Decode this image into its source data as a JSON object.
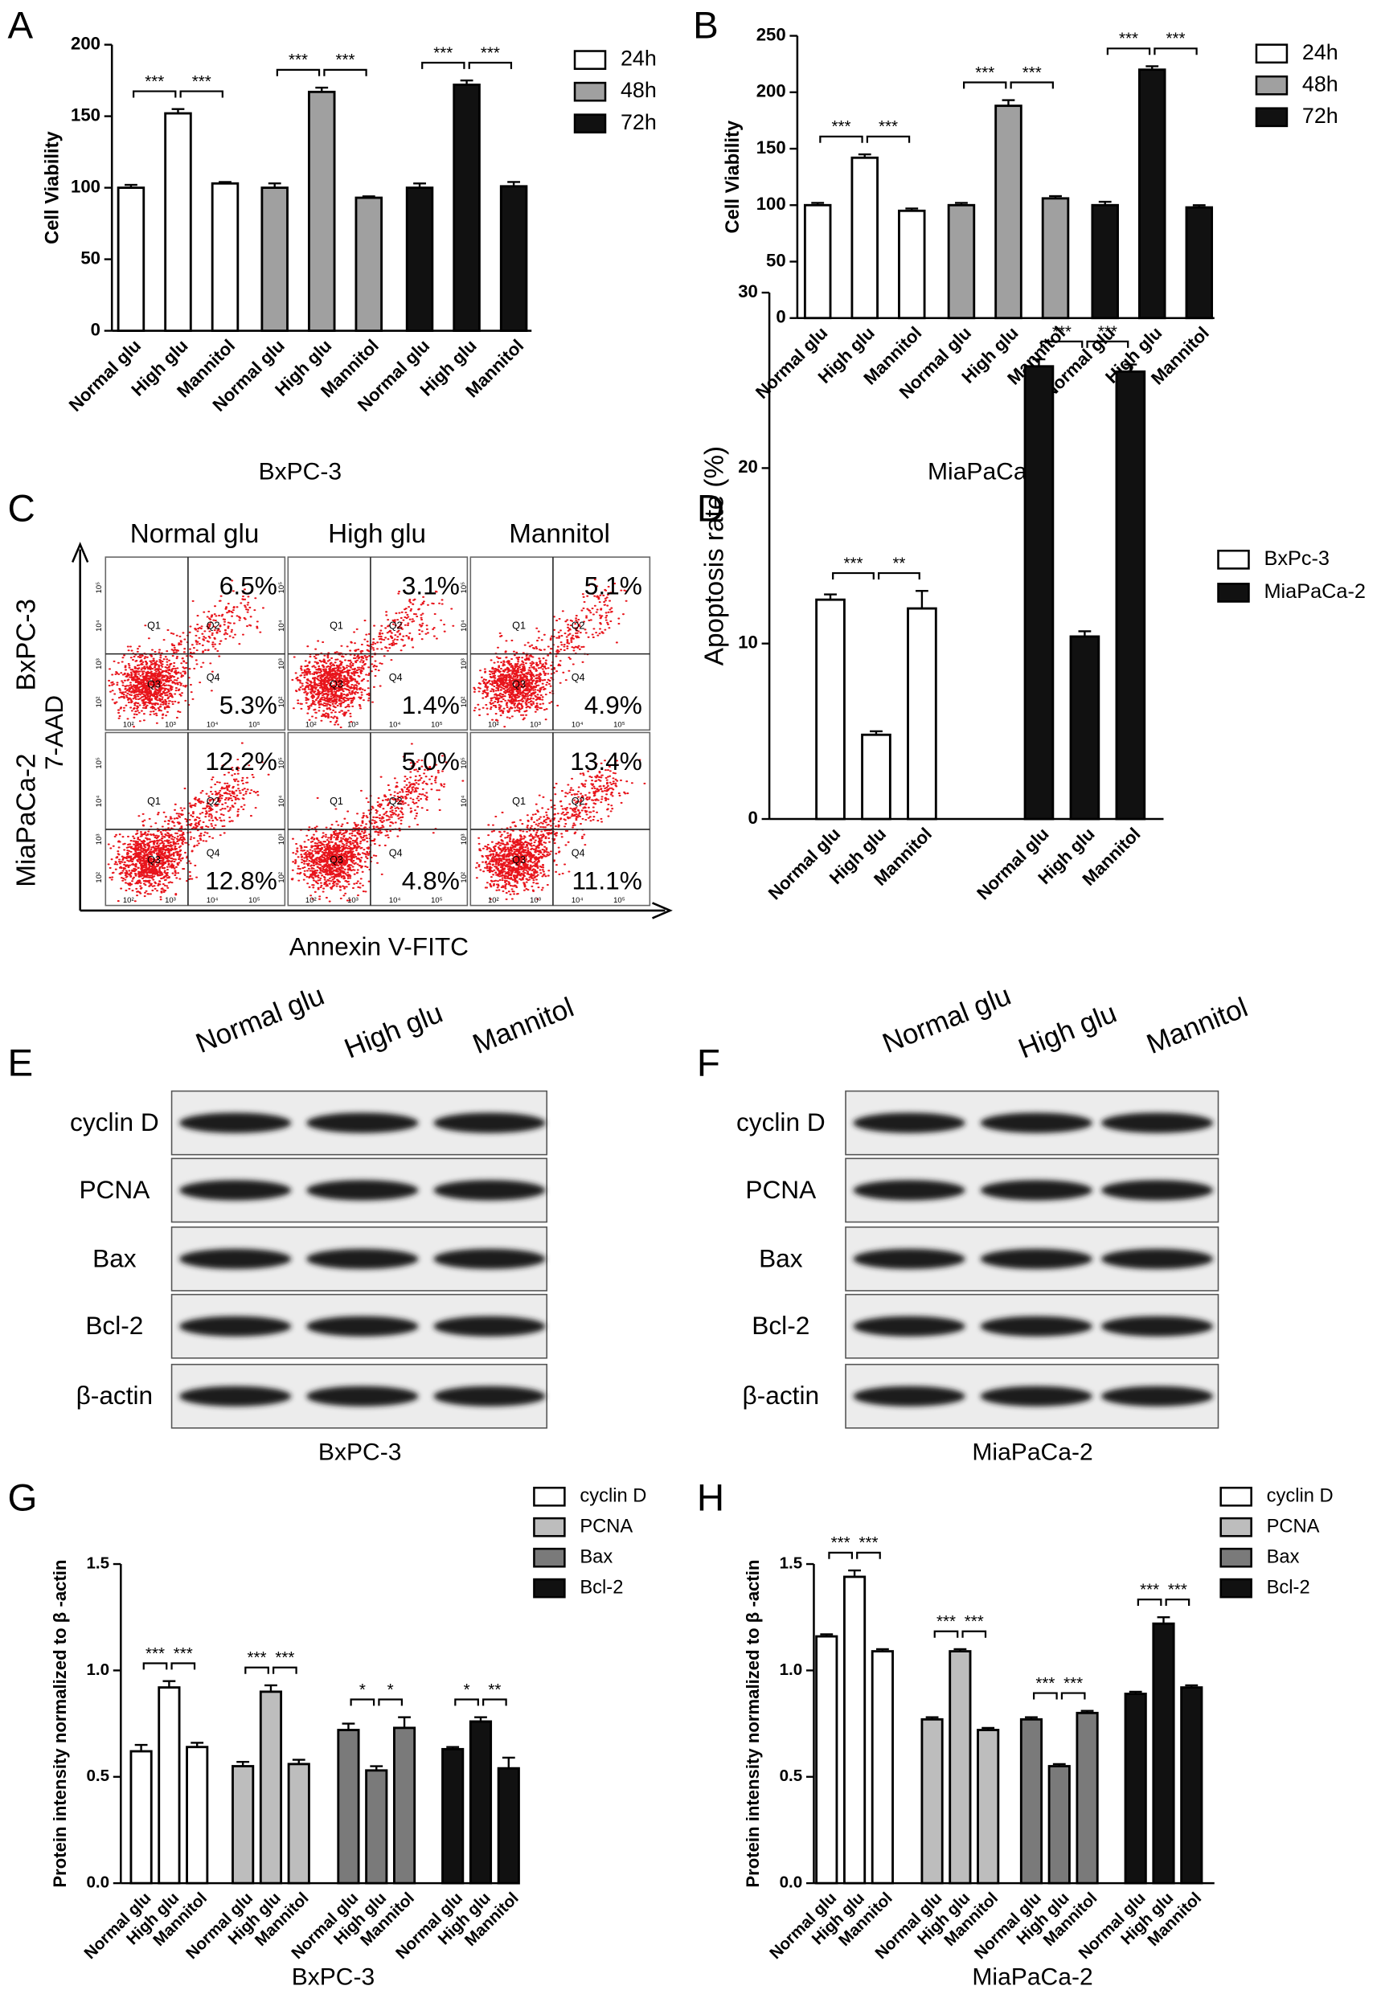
{
  "chart_data": [
    {
      "panel": "A",
      "type": "bar",
      "ylabel": "Cell Viability",
      "xlabel": "BxPC-3",
      "categories": [
        "Normal glu",
        "High glu",
        "Mannitol"
      ],
      "ylim": [
        0,
        200
      ],
      "yticks": [
        0,
        50,
        100,
        150,
        200
      ],
      "series": [
        {
          "name": "24h",
          "color": "#ffffff",
          "values": [
            100,
            152,
            103
          ],
          "errors": [
            2,
            3,
            1
          ],
          "significance": [
            "***",
            "***"
          ]
        },
        {
          "name": "48h",
          "color": "#a0a0a0",
          "values": [
            100,
            167,
            93
          ],
          "errors": [
            3,
            3,
            1
          ],
          "significance": [
            "***",
            "***"
          ]
        },
        {
          "name": "72h",
          "color": "#111111",
          "values": [
            100,
            172,
            101
          ],
          "errors": [
            3,
            3,
            3
          ],
          "significance": [
            "***",
            "***"
          ]
        }
      ]
    },
    {
      "panel": "B",
      "type": "bar",
      "ylabel": "Cell Viability",
      "xlabel": "MiaPaCa-2",
      "categories": [
        "Normal glu",
        "High glu",
        "Mannitol"
      ],
      "ylim": [
        0,
        250
      ],
      "yticks": [
        0,
        50,
        100,
        150,
        200,
        250
      ],
      "series": [
        {
          "name": "24h",
          "color": "#ffffff",
          "values": [
            100,
            142,
            95
          ],
          "errors": [
            2,
            3,
            2
          ],
          "significance": [
            "***",
            "***"
          ]
        },
        {
          "name": "48h",
          "color": "#a0a0a0",
          "values": [
            100,
            188,
            106
          ],
          "errors": [
            2,
            5,
            2
          ],
          "significance": [
            "***",
            "***"
          ]
        },
        {
          "name": "72h",
          "color": "#111111",
          "values": [
            100,
            220,
            98
          ],
          "errors": [
            3,
            3,
            2
          ],
          "significance": [
            "***",
            "***"
          ]
        }
      ]
    },
    {
      "panel": "D",
      "type": "bar",
      "ylabel": "Apoptosis rate (%)",
      "categories": [
        "Normal glu",
        "High glu",
        "Mannitol"
      ],
      "ylim": [
        0,
        30
      ],
      "yticks": [
        0,
        10,
        20,
        30
      ],
      "series": [
        {
          "name": "BxPc-3",
          "color": "#ffffff",
          "values": [
            12.5,
            4.8,
            12
          ],
          "errors": [
            0.3,
            0.2,
            1
          ],
          "significance": [
            "***",
            "**"
          ]
        },
        {
          "name": "MiaPaCa-2",
          "color": "#111111",
          "values": [
            25.8,
            10.4,
            25.5
          ],
          "errors": [
            0.4,
            0.3,
            0.4
          ],
          "significance": [
            "***",
            "***"
          ]
        }
      ]
    },
    {
      "panel": "G",
      "type": "bar",
      "ylabel": "Protein intensity normalized to β -actin",
      "xlabel": "BxPC-3",
      "categories": [
        "Normal glu",
        "High glu",
        "Mannitol"
      ],
      "ylim": [
        0,
        1.5
      ],
      "yticks": [
        {
          "value": 0,
          "label": "0.0"
        },
        0.5,
        {
          "value": 1,
          "label": "1.0"
        },
        1.5
      ],
      "series": [
        {
          "name": "cyclin D",
          "color": "#ffffff",
          "values": [
            0.62,
            0.92,
            0.64
          ],
          "errors": [
            0.03,
            0.03,
            0.02
          ],
          "significance": [
            "***",
            "***"
          ]
        },
        {
          "name": "PCNA",
          "color": "#bdbdbd",
          "values": [
            0.55,
            0.9,
            0.56
          ],
          "errors": [
            0.02,
            0.03,
            0.02
          ],
          "significance": [
            "***",
            "***"
          ]
        },
        {
          "name": "Bax",
          "color": "#7a7a7a",
          "values": [
            0.72,
            0.53,
            0.73
          ],
          "errors": [
            0.03,
            0.02,
            0.05
          ],
          "significance": [
            "*",
            "*"
          ]
        },
        {
          "name": "Bcl-2",
          "color": "#111111",
          "values": [
            0.63,
            0.76,
            0.54
          ],
          "errors": [
            0.01,
            0.02,
            0.05
          ],
          "significance": [
            "*",
            "**"
          ]
        }
      ]
    },
    {
      "panel": "H",
      "type": "bar",
      "ylabel": "Protein intensity normalized to β -actin",
      "xlabel": "MiaPaCa-2",
      "categories": [
        "Normal glu",
        "High glu",
        "Mannitol"
      ],
      "ylim": [
        0,
        1.5
      ],
      "yticks": [
        {
          "value": 0,
          "label": "0.0"
        },
        0.5,
        {
          "value": 1,
          "label": "1.0"
        },
        1.5
      ],
      "series": [
        {
          "name": "cyclin D",
          "color": "#ffffff",
          "values": [
            1.16,
            1.44,
            1.09
          ],
          "errors": [
            0.01,
            0.03,
            0.01
          ],
          "significance": [
            "***",
            "***"
          ]
        },
        {
          "name": "PCNA",
          "color": "#bdbdbd",
          "values": [
            0.77,
            1.09,
            0.72
          ],
          "errors": [
            0.01,
            0.01,
            0.01
          ],
          "significance": [
            "***",
            "***"
          ]
        },
        {
          "name": "Bax",
          "color": "#7a7a7a",
          "values": [
            0.77,
            0.55,
            0.8
          ],
          "errors": [
            0.01,
            0.01,
            0.01
          ],
          "significance": [
            "***",
            "***"
          ]
        },
        {
          "name": "Bcl-2",
          "color": "#111111",
          "values": [
            0.89,
            1.22,
            0.92
          ],
          "errors": [
            0.01,
            0.03,
            0.01
          ],
          "significance": [
            "***",
            "***"
          ]
        }
      ]
    }
  ],
  "flow_cytometry": {
    "panel": "C",
    "columns": [
      "Normal glu",
      "High glu",
      "Mannitol"
    ],
    "rows": [
      "BxPC-3",
      "MiaPaCa-2"
    ],
    "x_label": "Annexin V-FITC",
    "y_label": "7-AAD",
    "quadrants": [
      "Q1",
      "Q2",
      "Q3",
      "Q4"
    ],
    "tick_labels": [
      "10²",
      "10³",
      "10⁴",
      "10⁵"
    ],
    "percentages": [
      [
        [
          "6.5%",
          "5.3%"
        ],
        [
          "3.1%",
          "1.4%"
        ],
        [
          "5.1%",
          "4.9%"
        ]
      ],
      [
        [
          "12.2%",
          "12.8%"
        ],
        [
          "5.0%",
          "4.8%"
        ],
        [
          "13.4%",
          "11.1%"
        ]
      ]
    ]
  },
  "western_blots": [
    {
      "panel": "E",
      "lanes": [
        "Normal glu",
        "High glu",
        "Mannitol"
      ],
      "proteins": [
        "cyclin D",
        "PCNA",
        "Bax",
        "Bcl-2",
        "β-actin"
      ],
      "cell_line": "BxPC-3"
    },
    {
      "panel": "F",
      "lanes": [
        "Normal glu",
        "High glu",
        "Mannitol"
      ],
      "proteins": [
        "cyclin D",
        "PCNA",
        "Bax",
        "Bcl-2",
        "β-actin"
      ],
      "cell_line": "MiaPaCa-2"
    }
  ]
}
